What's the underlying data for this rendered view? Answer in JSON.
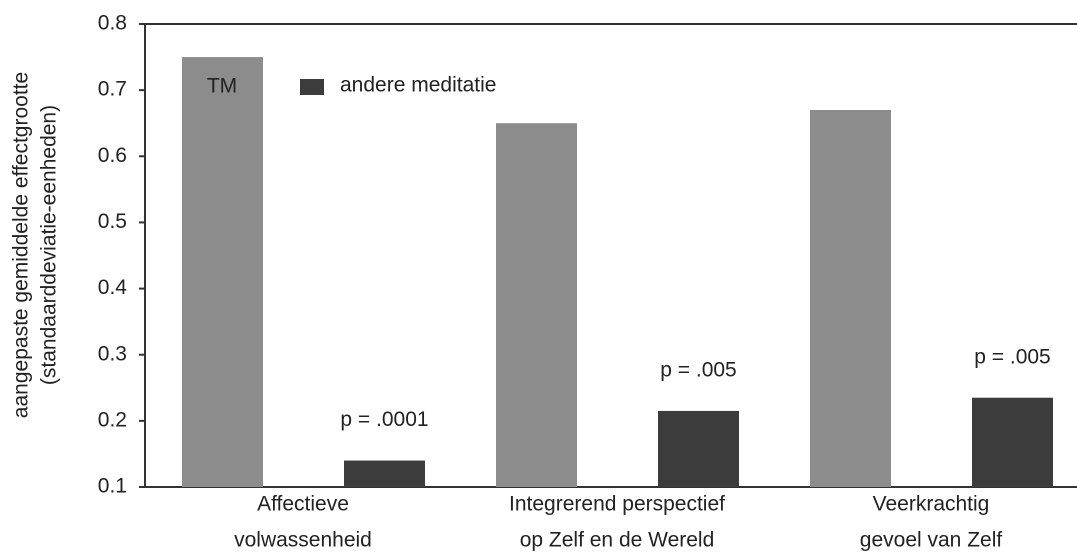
{
  "chart_data": {
    "type": "bar",
    "y_label": [
      "aangepaste gemiddelde effectgrootte",
      "(standaarddeviatie-eenheden)"
    ],
    "categories": [
      [
        "Affectieve",
        "volwassenheid"
      ],
      [
        "Integrerend perspectief",
        "op Zelf en de Wereld"
      ],
      [
        "Veerkrachtig",
        "gevoel van Zelf"
      ]
    ],
    "series": [
      {
        "name": "TM",
        "color": "#8c8c8c",
        "values": [
          0.75,
          0.65,
          0.67
        ]
      },
      {
        "name": "andere meditatie",
        "color": "#3c3c3c",
        "values": [
          0.14,
          0.215,
          0.235
        ]
      }
    ],
    "annotations": [
      "p = .0001",
      "p = .005",
      "p = .005"
    ],
    "ylim": [
      0.1,
      0.8
    ],
    "yticks": [
      0.1,
      0.2,
      0.3,
      0.4,
      0.5,
      0.6,
      0.7,
      0.8
    ]
  }
}
